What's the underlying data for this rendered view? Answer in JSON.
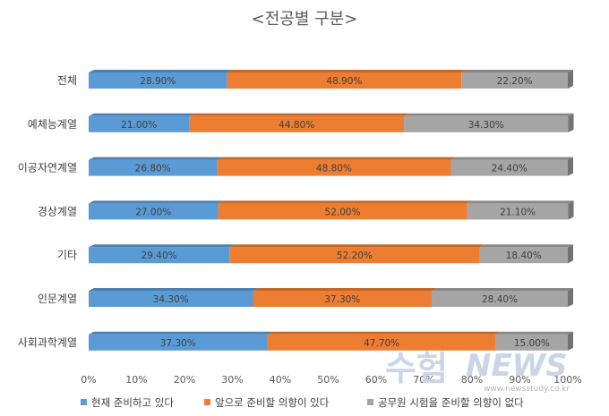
{
  "chart_data": {
    "type": "bar",
    "orientation": "horizontal",
    "stacked": "percent",
    "title": "<전공별 구분>",
    "categories": [
      "전체",
      "예체능계열",
      "이공자연계열",
      "경상계열",
      "기타",
      "인문계열",
      "사회과학계열"
    ],
    "series": [
      {
        "name": "현재 준비하고 있다",
        "color": "#5B9BD5",
        "values": [
          28.9,
          21.0,
          26.8,
          27.0,
          29.4,
          34.3,
          37.3
        ],
        "labels": [
          "28.90%",
          "21.00%",
          "26.80%",
          "27.00%",
          "29.40%",
          "34.30%",
          "37.30%"
        ]
      },
      {
        "name": "앞으로 준비할 의향이 있다",
        "color": "#ED7D31",
        "values": [
          48.9,
          44.8,
          48.8,
          52.0,
          52.2,
          37.3,
          47.7
        ],
        "labels": [
          "48.90%",
          "44.80%",
          "48.80%",
          "52.00%",
          "52.20%",
          "37.30%",
          "47.70%"
        ]
      },
      {
        "name": "공무원 시험을 준비할 의향이 없다",
        "color": "#A5A5A5",
        "values": [
          22.2,
          34.3,
          24.4,
          21.1,
          18.4,
          28.4,
          15.0
        ],
        "labels": [
          "22.20%",
          "34.30%",
          "24.40%",
          "21.10%",
          "18.40%",
          "28.40%",
          "15.00%"
        ]
      }
    ],
    "xlim": [
      0,
      100
    ],
    "xticks": [
      "0%",
      "10%",
      "20%",
      "30%",
      "40%",
      "50%",
      "60%",
      "70%",
      "80%",
      "90%",
      "100%"
    ],
    "grid": false,
    "legend_position": "bottom"
  },
  "watermark": {
    "text": "수험",
    "brand": "NEWS",
    "url": "www.newsstudy.co.kr"
  }
}
